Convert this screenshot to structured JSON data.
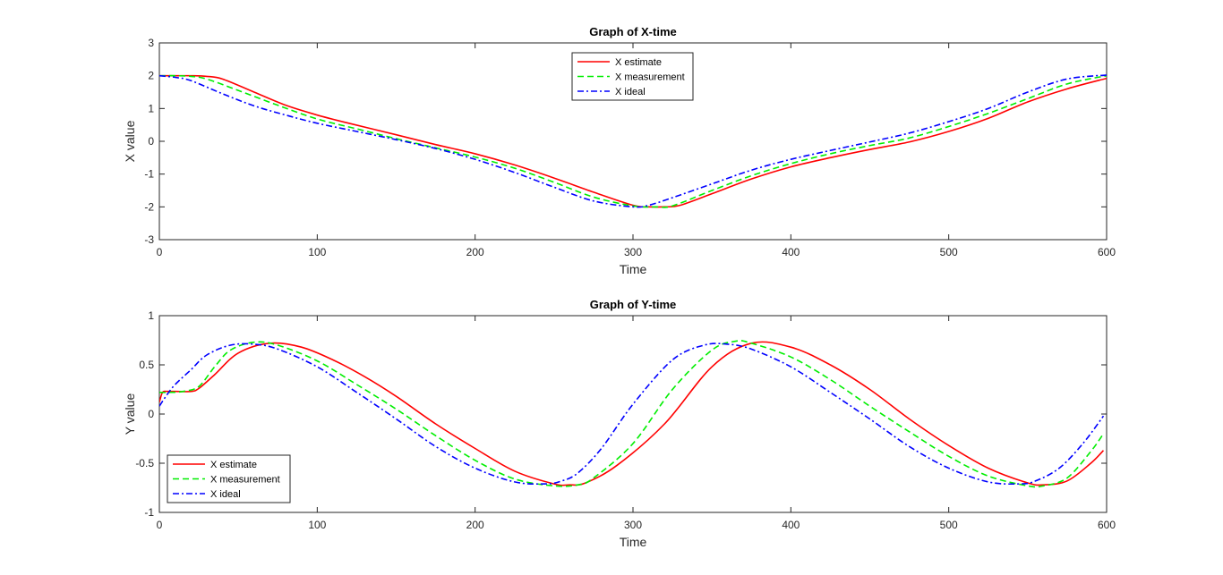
{
  "chart_data": [
    {
      "type": "line",
      "title": "Graph of X-time",
      "xlabel": "Time",
      "ylabel": "X value",
      "xlim": [
        0,
        600
      ],
      "ylim": [
        -3,
        3
      ],
      "xticks": [
        0,
        100,
        200,
        300,
        400,
        500,
        600
      ],
      "yticks": [
        -3,
        -2,
        -1,
        0,
        1,
        2,
        3
      ],
      "legend_position": "top-center",
      "grid": false,
      "series": [
        {
          "name": "X estimate",
          "color": "#ff0000",
          "style": "solid",
          "x": [
            0,
            10,
            20,
            30,
            40,
            60,
            80,
            100,
            120,
            150,
            175,
            200,
            225,
            250,
            275,
            300,
            310,
            320,
            330,
            350,
            375,
            400,
            425,
            450,
            475,
            500,
            525,
            550,
            575,
            600
          ],
          "y": [
            2.0,
            2.0,
            2.0,
            1.98,
            1.9,
            1.5,
            1.1,
            0.8,
            0.55,
            0.2,
            -0.1,
            -0.38,
            -0.72,
            -1.12,
            -1.55,
            -1.95,
            -2.0,
            -2.0,
            -1.95,
            -1.6,
            -1.15,
            -0.78,
            -0.5,
            -0.25,
            -0.02,
            0.3,
            0.7,
            1.2,
            1.6,
            1.92
          ]
        },
        {
          "name": "X measurement",
          "color": "#00ee00",
          "style": "dashed",
          "x": [
            0,
            10,
            20,
            30,
            50,
            75,
            100,
            125,
            150,
            175,
            200,
            225,
            250,
            275,
            300,
            315,
            325,
            350,
            375,
            400,
            425,
            450,
            475,
            500,
            525,
            550,
            575,
            600
          ],
          "y": [
            2.0,
            2.0,
            1.98,
            1.9,
            1.55,
            1.1,
            0.68,
            0.38,
            0.08,
            -0.2,
            -0.48,
            -0.82,
            -1.25,
            -1.7,
            -1.97,
            -2.0,
            -1.97,
            -1.5,
            -1.05,
            -0.68,
            -0.38,
            -0.13,
            0.1,
            0.45,
            0.85,
            1.3,
            1.75,
            2.0
          ]
        },
        {
          "name": "X ideal",
          "color": "#0000ff",
          "style": "dashdot",
          "x": [
            0,
            10,
            20,
            40,
            60,
            80,
            100,
            125,
            150,
            175,
            200,
            225,
            250,
            275,
            300,
            310,
            325,
            350,
            375,
            400,
            425,
            450,
            475,
            500,
            525,
            550,
            575,
            600
          ],
          "y": [
            2.0,
            1.95,
            1.85,
            1.45,
            1.08,
            0.8,
            0.55,
            0.3,
            0.05,
            -0.22,
            -0.55,
            -0.95,
            -1.4,
            -1.82,
            -2.0,
            -1.95,
            -1.72,
            -1.3,
            -0.88,
            -0.55,
            -0.28,
            -0.02,
            0.25,
            0.6,
            1.0,
            1.5,
            1.9,
            2.02
          ]
        }
      ]
    },
    {
      "type": "line",
      "title": "Graph of Y-time",
      "xlabel": "Time",
      "ylabel": "Y value",
      "xlim": [
        0,
        600
      ],
      "ylim": [
        -1,
        1
      ],
      "xticks": [
        0,
        100,
        200,
        300,
        400,
        500,
        600
      ],
      "yticks": [
        -1,
        -0.5,
        0,
        0.5,
        1
      ],
      "ytick_labels": [
        "-1",
        "-0.5",
        "0",
        "0.5",
        "1"
      ],
      "legend_position": "bottom-left",
      "grid": false,
      "series": [
        {
          "name": "X estimate",
          "color": "#ff0000",
          "style": "solid",
          "x": [
            0,
            2,
            5,
            10,
            20,
            25,
            35,
            50,
            70,
            90,
            110,
            130,
            150,
            175,
            200,
            225,
            250,
            260,
            270,
            290,
            320,
            350,
            375,
            400,
            425,
            450,
            475,
            500,
            525,
            550,
            560,
            575,
            590,
            598
          ],
          "y": [
            0.12,
            0.22,
            0.23,
            0.23,
            0.23,
            0.26,
            0.4,
            0.62,
            0.72,
            0.68,
            0.55,
            0.38,
            0.18,
            -0.1,
            -0.35,
            -0.58,
            -0.71,
            -0.72,
            -0.7,
            -0.52,
            -0.1,
            0.48,
            0.72,
            0.68,
            0.5,
            0.25,
            -0.05,
            -0.32,
            -0.55,
            -0.7,
            -0.72,
            -0.68,
            -0.5,
            -0.37
          ]
        },
        {
          "name": "X measurement",
          "color": "#00ee00",
          "style": "dashed",
          "x": [
            0,
            5,
            15,
            25,
            35,
            45,
            60,
            75,
            100,
            125,
            150,
            175,
            200,
            225,
            250,
            265,
            275,
            300,
            325,
            350,
            365,
            375,
            400,
            425,
            450,
            475,
            500,
            525,
            550,
            560,
            575,
            590,
            598
          ],
          "y": [
            0.22,
            0.22,
            0.23,
            0.28,
            0.48,
            0.65,
            0.73,
            0.7,
            0.54,
            0.3,
            0.05,
            -0.22,
            -0.47,
            -0.66,
            -0.73,
            -0.72,
            -0.65,
            -0.3,
            0.25,
            0.65,
            0.74,
            0.72,
            0.58,
            0.35,
            0.08,
            -0.18,
            -0.43,
            -0.63,
            -0.73,
            -0.73,
            -0.65,
            -0.38,
            -0.2
          ]
        },
        {
          "name": "X ideal",
          "color": "#0000ff",
          "style": "dashdot",
          "x": [
            0,
            5,
            10,
            20,
            30,
            45,
            60,
            75,
            100,
            125,
            150,
            175,
            200,
            225,
            245,
            255,
            265,
            280,
            300,
            325,
            345,
            360,
            375,
            400,
            425,
            450,
            475,
            500,
            525,
            545,
            555,
            570,
            585,
            598
          ],
          "y": [
            0.08,
            0.2,
            0.3,
            0.45,
            0.6,
            0.7,
            0.71,
            0.66,
            0.48,
            0.22,
            -0.05,
            -0.33,
            -0.55,
            -0.69,
            -0.71,
            -0.68,
            -0.6,
            -0.35,
            0.1,
            0.55,
            0.7,
            0.71,
            0.66,
            0.48,
            0.22,
            -0.05,
            -0.33,
            -0.55,
            -0.69,
            -0.71,
            -0.68,
            -0.55,
            -0.3,
            -0.02
          ]
        }
      ]
    }
  ]
}
